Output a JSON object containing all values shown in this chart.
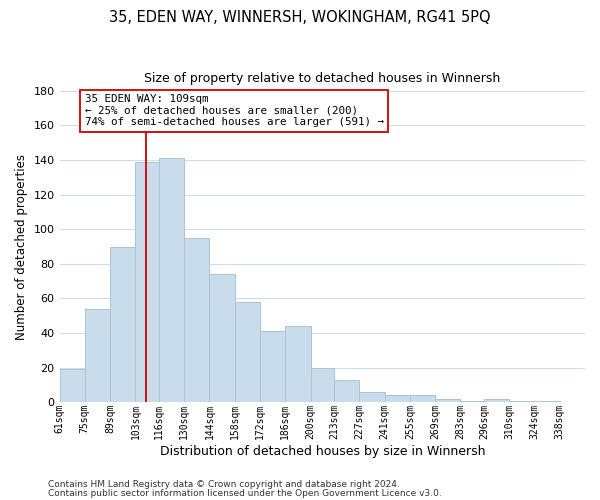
{
  "title": "35, EDEN WAY, WINNERSH, WOKINGHAM, RG41 5PQ",
  "subtitle": "Size of property relative to detached houses in Winnersh",
  "xlabel": "Distribution of detached houses by size in Winnersh",
  "ylabel": "Number of detached properties",
  "bar_color": "#c8dcec",
  "bar_edge_color": "#a8c4dc",
  "bar_left_edges": [
    61,
    75,
    89,
    103,
    116,
    130,
    144,
    158,
    172,
    186,
    200,
    213,
    227,
    241,
    255,
    269,
    283,
    296,
    310,
    324
  ],
  "bar_widths": [
    14,
    14,
    14,
    13,
    14,
    14,
    14,
    14,
    14,
    14,
    13,
    14,
    14,
    14,
    14,
    14,
    13,
    14,
    14,
    14
  ],
  "bar_heights": [
    19,
    54,
    90,
    139,
    141,
    95,
    74,
    58,
    41,
    44,
    20,
    13,
    6,
    4,
    4,
    2,
    1,
    2,
    1,
    1
  ],
  "tick_labels": [
    "61sqm",
    "75sqm",
    "89sqm",
    "103sqm",
    "116sqm",
    "130sqm",
    "144sqm",
    "158sqm",
    "172sqm",
    "186sqm",
    "200sqm",
    "213sqm",
    "227sqm",
    "241sqm",
    "255sqm",
    "269sqm",
    "283sqm",
    "296sqm",
    "310sqm",
    "324sqm",
    "338sqm"
  ],
  "tick_positions": [
    61,
    75,
    89,
    103,
    116,
    130,
    144,
    158,
    172,
    186,
    200,
    213,
    227,
    241,
    255,
    269,
    283,
    296,
    310,
    324,
    338
  ],
  "ylim": [
    0,
    180
  ],
  "yticks": [
    0,
    20,
    40,
    60,
    80,
    100,
    120,
    140,
    160,
    180
  ],
  "property_line_x": 109,
  "property_line_color": "#cc0000",
  "annotation_title": "35 EDEN WAY: 109sqm",
  "annotation_line1": "← 25% of detached houses are smaller (200)",
  "annotation_line2": "74% of semi-detached houses are larger (591) →",
  "footer_line1": "Contains HM Land Registry data © Crown copyright and database right 2024.",
  "footer_line2": "Contains public sector information licensed under the Open Government Licence v3.0.",
  "background_color": "#ffffff",
  "grid_color": "#d0dce8"
}
